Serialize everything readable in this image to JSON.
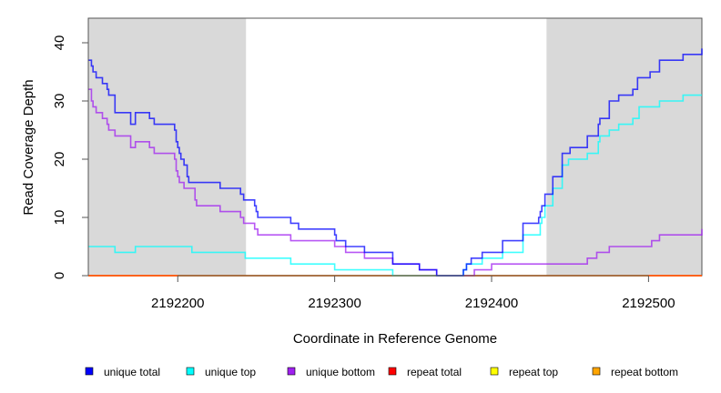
{
  "chart_data": {
    "type": "line",
    "step": true,
    "xlabel": "Coordinate in Reference Genome",
    "ylabel": "Read Coverage Depth",
    "xlim": [
      2192143,
      2192534
    ],
    "ylim": [
      0,
      44
    ],
    "xticks": [
      2192200,
      2192300,
      2192400,
      2192500
    ],
    "yticks": [
      0,
      10,
      20,
      30,
      40
    ],
    "shaded_regions": [
      [
        2192143,
        2192243.5
      ],
      [
        2192435,
        2192534
      ]
    ],
    "legend_position": "bottom",
    "series": [
      {
        "name": "unique total",
        "color": "#0000ff",
        "points": [
          [
            2192143,
            37
          ],
          [
            2192145,
            36
          ],
          [
            2192146,
            35
          ],
          [
            2192148,
            34
          ],
          [
            2192152,
            33
          ],
          [
            2192155,
            32
          ],
          [
            2192156,
            31
          ],
          [
            2192160,
            28
          ],
          [
            2192170,
            26
          ],
          [
            2192173,
            28
          ],
          [
            2192182,
            27
          ],
          [
            2192185,
            26
          ],
          [
            2192198,
            25
          ],
          [
            2192199,
            23
          ],
          [
            2192200,
            22
          ],
          [
            2192201,
            21
          ],
          [
            2192202,
            20
          ],
          [
            2192204,
            19
          ],
          [
            2192206,
            17
          ],
          [
            2192207,
            16
          ],
          [
            2192227,
            15
          ],
          [
            2192240,
            14
          ],
          [
            2192242,
            13
          ],
          [
            2192249,
            12
          ],
          [
            2192250,
            11
          ],
          [
            2192251,
            10
          ],
          [
            2192272,
            9
          ],
          [
            2192277,
            8
          ],
          [
            2192300,
            7
          ],
          [
            2192301,
            6
          ],
          [
            2192307,
            5
          ],
          [
            2192319,
            4
          ],
          [
            2192337,
            2
          ],
          [
            2192354,
            1
          ],
          [
            2192365,
            0
          ],
          [
            2192382,
            1
          ],
          [
            2192384,
            2
          ],
          [
            2192387,
            3
          ],
          [
            2192394,
            4
          ],
          [
            2192407,
            6
          ],
          [
            2192420,
            9
          ],
          [
            2192430,
            10
          ],
          [
            2192431,
            11
          ],
          [
            2192432,
            12
          ],
          [
            2192434,
            14
          ],
          [
            2192439,
            17
          ],
          [
            2192445,
            21
          ],
          [
            2192450,
            22
          ],
          [
            2192461,
            24
          ],
          [
            2192468,
            26
          ],
          [
            2192469,
            27
          ],
          [
            2192475,
            30
          ],
          [
            2192481,
            31
          ],
          [
            2192490,
            32
          ],
          [
            2192493,
            34
          ],
          [
            2192501,
            35
          ],
          [
            2192507,
            37
          ],
          [
            2192522,
            38
          ],
          [
            2192534,
            39
          ]
        ]
      },
      {
        "name": "unique top",
        "color": "#00ffff",
        "points": [
          [
            2192143,
            5
          ],
          [
            2192160,
            4
          ],
          [
            2192173,
            5
          ],
          [
            2192209,
            4
          ],
          [
            2192243,
            3
          ],
          [
            2192272,
            2
          ],
          [
            2192300,
            1
          ],
          [
            2192337,
            0
          ],
          [
            2192382,
            1
          ],
          [
            2192384,
            2
          ],
          [
            2192394,
            3
          ],
          [
            2192407,
            4
          ],
          [
            2192420,
            7
          ],
          [
            2192431,
            9
          ],
          [
            2192432,
            10
          ],
          [
            2192434,
            12
          ],
          [
            2192439,
            15
          ],
          [
            2192445,
            19
          ],
          [
            2192449,
            20
          ],
          [
            2192461,
            21
          ],
          [
            2192468,
            23
          ],
          [
            2192469,
            24
          ],
          [
            2192475,
            25
          ],
          [
            2192481,
            26
          ],
          [
            2192490,
            27
          ],
          [
            2192494,
            29
          ],
          [
            2192507,
            30
          ],
          [
            2192522,
            31
          ],
          [
            2192534,
            31
          ]
        ]
      },
      {
        "name": "unique bottom",
        "color": "#a020f0",
        "points": [
          [
            2192143,
            32
          ],
          [
            2192145,
            30
          ],
          [
            2192146,
            29
          ],
          [
            2192148,
            28
          ],
          [
            2192152,
            27
          ],
          [
            2192155,
            26
          ],
          [
            2192156,
            25
          ],
          [
            2192160,
            24
          ],
          [
            2192170,
            22
          ],
          [
            2192173,
            23
          ],
          [
            2192182,
            22
          ],
          [
            2192185,
            21
          ],
          [
            2192198,
            20
          ],
          [
            2192199,
            18
          ],
          [
            2192200,
            17
          ],
          [
            2192201,
            16
          ],
          [
            2192204,
            15
          ],
          [
            2192211,
            13
          ],
          [
            2192212,
            12
          ],
          [
            2192227,
            11
          ],
          [
            2192240,
            10
          ],
          [
            2192242,
            9
          ],
          [
            2192249,
            8
          ],
          [
            2192251,
            7
          ],
          [
            2192272,
            6
          ],
          [
            2192300,
            5
          ],
          [
            2192307,
            4
          ],
          [
            2192319,
            3
          ],
          [
            2192337,
            2
          ],
          [
            2192354,
            1
          ],
          [
            2192365,
            0
          ],
          [
            2192389,
            1
          ],
          [
            2192400,
            2
          ],
          [
            2192461,
            3
          ],
          [
            2192467,
            4
          ],
          [
            2192475,
            5
          ],
          [
            2192502,
            6
          ],
          [
            2192507,
            7
          ],
          [
            2192534,
            8
          ]
        ]
      },
      {
        "name": "repeat total",
        "color": "#ff0000",
        "points": [
          [
            2192143,
            0
          ],
          [
            2192534,
            0
          ]
        ]
      },
      {
        "name": "repeat top",
        "color": "#ffff00",
        "points": [
          [
            2192143,
            0
          ],
          [
            2192534,
            0
          ]
        ]
      },
      {
        "name": "repeat bottom",
        "color": "#ffa500",
        "points": [
          [
            2192143,
            0
          ],
          [
            2192534,
            0
          ]
        ]
      }
    ]
  }
}
